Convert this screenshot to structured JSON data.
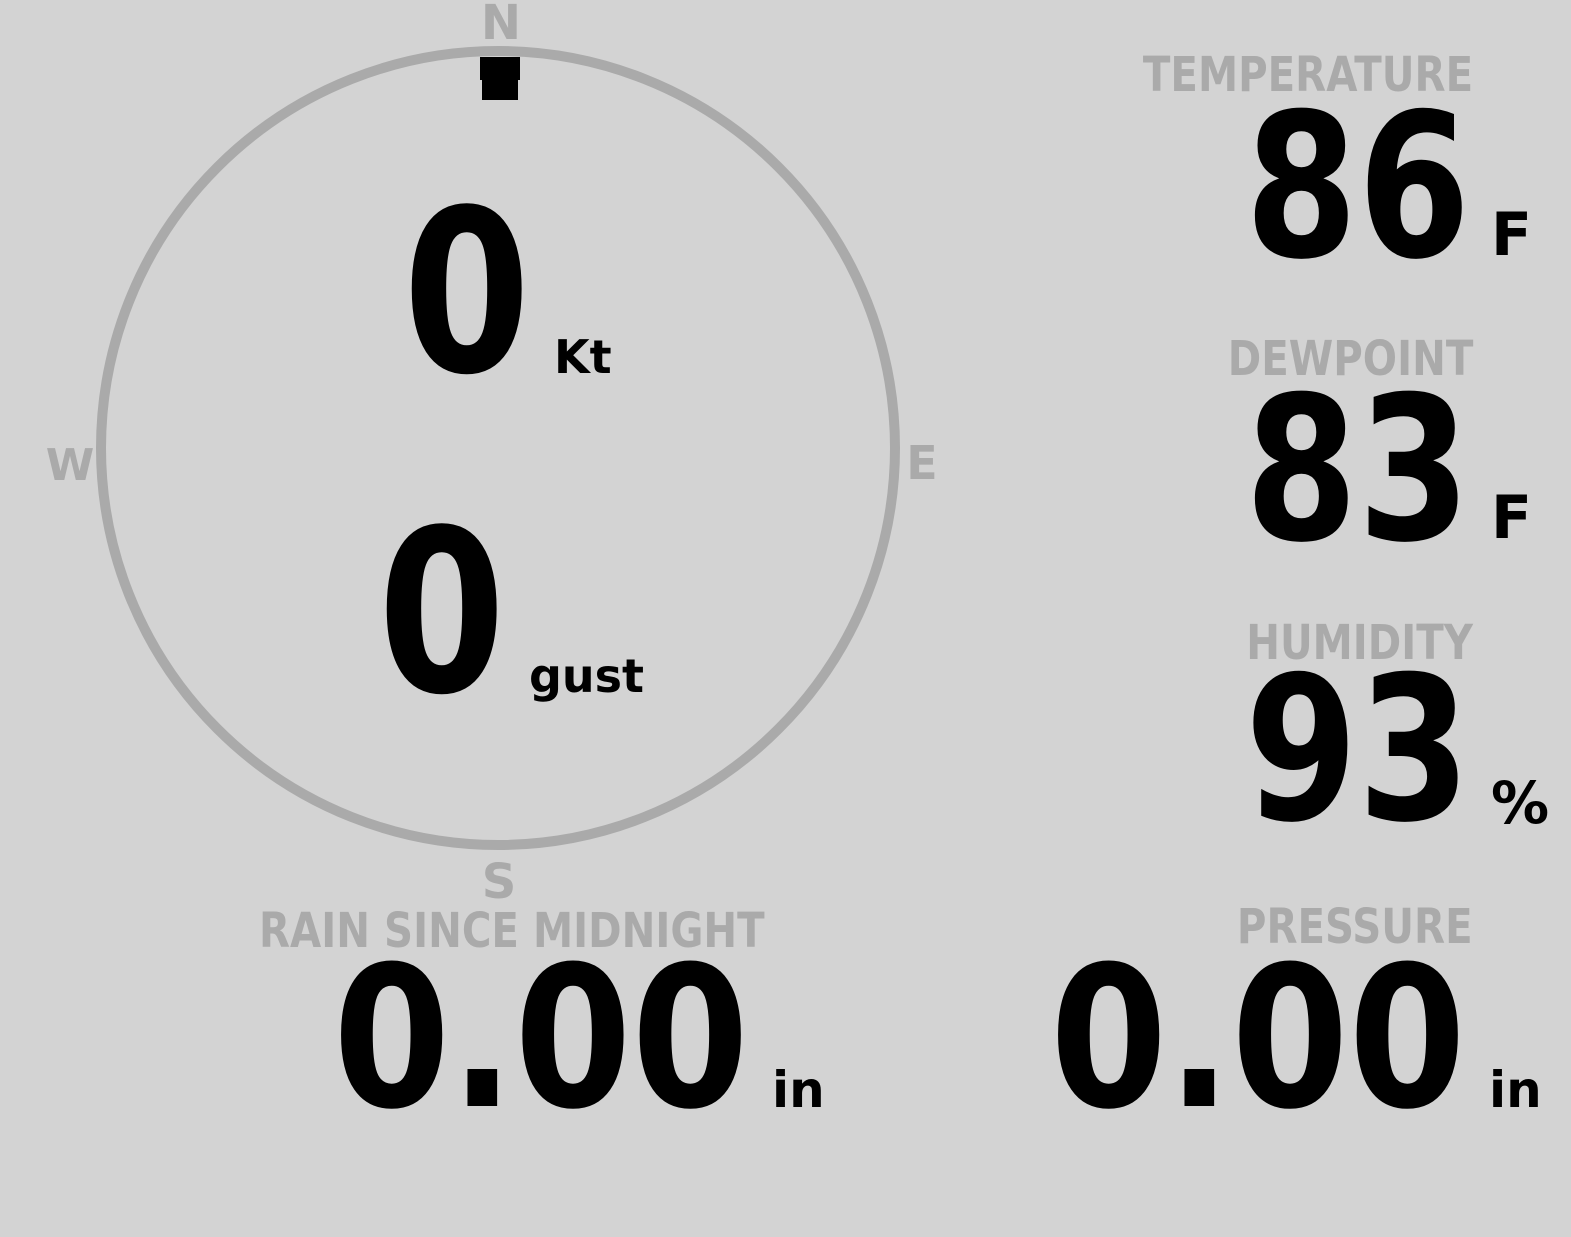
{
  "colors": {
    "background": "#d3d3d3",
    "label": "#aaaaaa",
    "value": "#000000"
  },
  "wind": {
    "compass": {
      "n": "N",
      "e": "E",
      "s": "S",
      "w": "W"
    },
    "direction_deg": 0,
    "speed": "0",
    "speed_unit": "Kt",
    "gust": "0",
    "gust_unit": "gust"
  },
  "temperature": {
    "label": "TEMPERATURE",
    "value": "86",
    "unit": "F"
  },
  "dewpoint": {
    "label": "DEWPOINT",
    "value": "83",
    "unit": "F"
  },
  "humidity": {
    "label": "HUMIDITY",
    "value": "93",
    "unit": "%"
  },
  "rain": {
    "label": "RAIN SINCE MIDNIGHT",
    "value": "0.00",
    "unit": "in"
  },
  "pressure": {
    "label": "PRESSURE",
    "value": "0.00",
    "unit": "in"
  }
}
